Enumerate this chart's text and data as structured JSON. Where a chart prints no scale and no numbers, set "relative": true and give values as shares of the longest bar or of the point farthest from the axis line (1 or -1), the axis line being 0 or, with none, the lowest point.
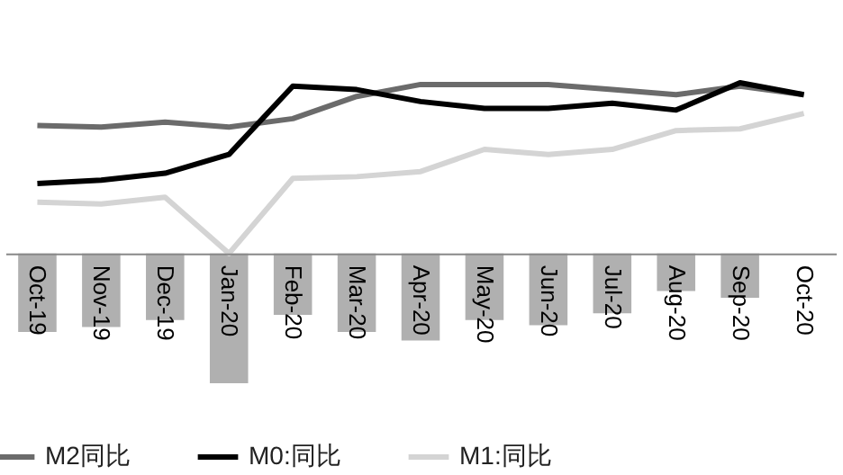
{
  "chart_data": {
    "type": "line",
    "relative": true,
    "categories": [
      "Oct-19",
      "Nov-19",
      "Dec-19",
      "Jan-20",
      "Feb-20",
      "Mar-20",
      "Apr-20",
      "May-20",
      "Jun-20",
      "Jul-20",
      "Aug-20",
      "Sep-20",
      "Oct-20"
    ],
    "series": [
      {
        "type": "bar",
        "color": "#b0b0b0",
        "values": [
          -0.46,
          -0.43,
          -0.39,
          -0.76,
          -0.36,
          -0.46,
          -0.51,
          -0.39,
          -0.42,
          -0.35,
          -0.22,
          -0.26,
          null
        ]
      },
      {
        "name": "M2同比",
        "color": "#6b6b6b",
        "values": [
          0.75,
          0.74,
          0.77,
          0.74,
          0.79,
          0.92,
          0.99,
          0.99,
          0.99,
          0.96,
          0.93,
          0.98,
          0.93
        ]
      },
      {
        "name": "M0:同比",
        "color": "#000000",
        "values": [
          0.41,
          0.43,
          0.47,
          0.58,
          0.98,
          0.96,
          0.89,
          0.85,
          0.85,
          0.88,
          0.84,
          1.0,
          0.93
        ]
      },
      {
        "name": "M1:同比",
        "color": "#d4d4d4",
        "values": [
          0.3,
          0.29,
          0.33,
          0.0,
          0.44,
          0.45,
          0.48,
          0.61,
          0.58,
          0.61,
          0.72,
          0.73,
          0.82
        ]
      }
    ],
    "legend": "bottom",
    "grid": false
  }
}
